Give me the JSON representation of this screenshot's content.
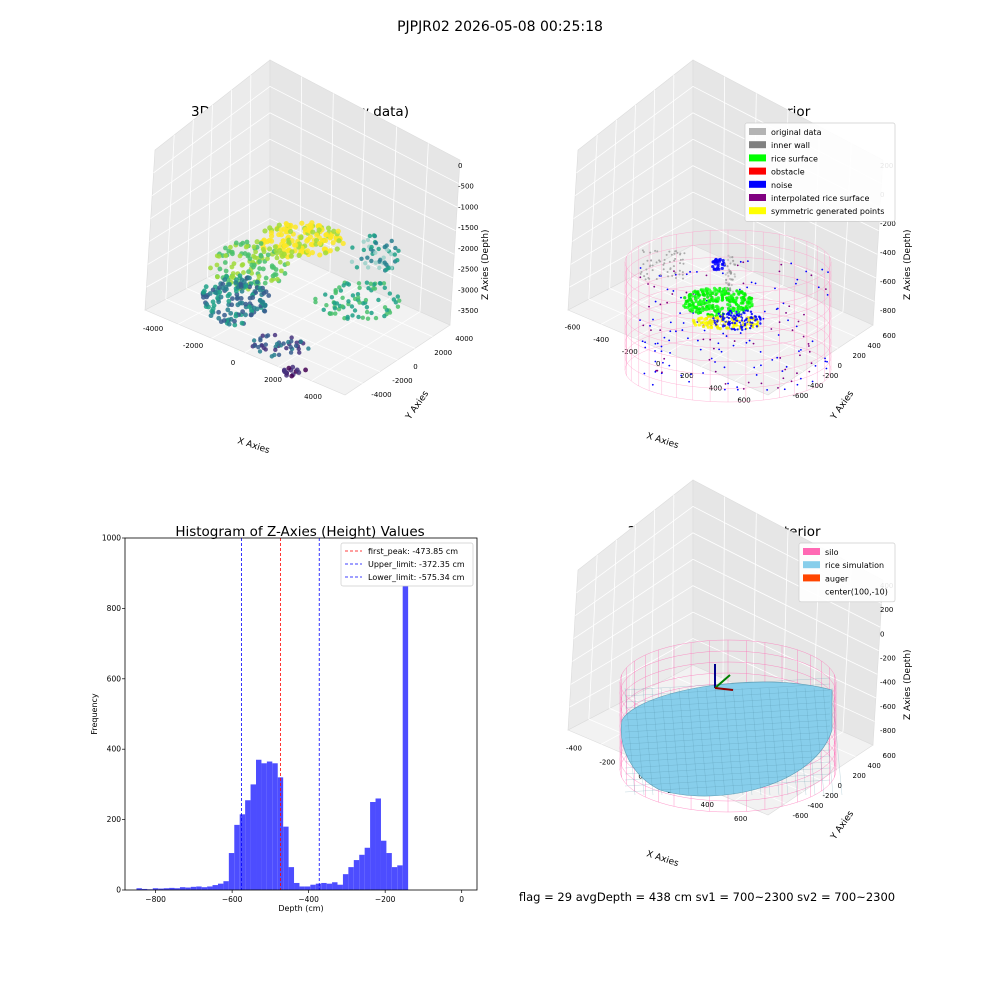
{
  "suptitle": "PJPJR02 2026-05-08 00:25:18",
  "footer": "flag = 29  avgDepth = 438 cm  sv1 = 700~2300  sv2 = 700~2300",
  "chart_data": [
    {
      "type": "scatter",
      "projection": "3d",
      "title": "3D Plot of Silo Interior(row data)",
      "xlabel": "X Axies",
      "ylabel": "Y Axies",
      "zlabel": "Z Axies (Depth)",
      "xticks": [
        "-4000",
        "-2000",
        "0",
        "2000",
        "4000"
      ],
      "yticks": [
        "-4000",
        "-2000",
        "0",
        "2000",
        "4000"
      ],
      "zticks": [
        "0",
        "-500",
        "-1000",
        "-1500",
        "-2000",
        "-2500",
        "-3000",
        "-3500"
      ],
      "colormap": "viridis",
      "grid": true
    },
    {
      "type": "scatter",
      "projection": "3d",
      "title": "3D classify of Silo Interior",
      "xlabel": "X Axies",
      "ylabel": "Y Axies",
      "zlabel": "Z Axies (Depth)",
      "xticks": [
        "-600",
        "-400",
        "-200",
        "0",
        "200",
        "400",
        "600"
      ],
      "yticks": [
        "-600",
        "-400",
        "-200",
        "0",
        "200",
        "400",
        "600"
      ],
      "zticks": [
        "200",
        "0",
        "-200",
        "-400",
        "-600",
        "-800"
      ],
      "legend_position": "top-right",
      "legend": [
        {
          "label": "original data",
          "color": "#b3b3b3"
        },
        {
          "label": "inner wall",
          "color": "#808080"
        },
        {
          "label": "rice surface",
          "color": "#00ff00"
        },
        {
          "label": "obstacle",
          "color": "#ff0000"
        },
        {
          "label": "noise",
          "color": "#0000ff"
        },
        {
          "label": "interpolated rice surface",
          "color": "#800080"
        },
        {
          "label": "symmetric generated points",
          "color": "#ffff00"
        }
      ],
      "grid": true
    },
    {
      "type": "bar",
      "title": "Histogram of Z-Axies (Height) Values",
      "xlabel": "Depth (cm)",
      "ylabel": "Frequency",
      "xlim": [
        -880,
        40
      ],
      "ylim": [
        0,
        1000
      ],
      "xticks": [
        "−800",
        "−600",
        "−400",
        "−200",
        "0"
      ],
      "yticks": [
        "0",
        "200",
        "400",
        "600",
        "800",
        "1000"
      ],
      "bar_color": "#4d4dff",
      "bins": {
        "start": -850,
        "width": 14.2,
        "values": [
          5,
          3,
          2,
          5,
          4,
          5,
          6,
          5,
          8,
          7,
          9,
          10,
          8,
          10,
          14,
          18,
          25,
          105,
          185,
          215,
          255,
          300,
          370,
          360,
          365,
          360,
          320,
          180,
          65,
          20,
          10,
          10,
          15,
          18,
          20,
          18,
          22,
          15,
          45,
          65,
          85,
          100,
          120,
          250,
          260,
          140,
          105,
          65,
          70,
          950
        ]
      },
      "vlines": [
        {
          "label": "first_peak: -473.85 cm",
          "x": -473.85,
          "color": "#ff0000"
        },
        {
          "label": "Upper_limit: -372.35 cm",
          "x": -372.35,
          "color": "#0000ff"
        },
        {
          "label": "Lower_limit: -575.34 cm",
          "x": -575.34,
          "color": "#0000ff"
        }
      ],
      "legend_position": "top-right",
      "grid": false
    },
    {
      "type": "scatter",
      "projection": "3d",
      "title": "3D simulation of Silo Interior",
      "xlabel": "X Axies",
      "ylabel": "Y Axies",
      "zlabel": "Z Axies (Depth)",
      "xticks": [
        "-400",
        "-200",
        "0",
        "200",
        "400",
        "600"
      ],
      "yticks": [
        "-600",
        "-400",
        "-200",
        "0",
        "200",
        "400",
        "600"
      ],
      "zticks": [
        "400",
        "200",
        "0",
        "-200",
        "-400",
        "-600",
        "-800"
      ],
      "legend_position": "top-right",
      "legend": [
        {
          "label": "silo",
          "color": "#ff69b4"
        },
        {
          "label": "rice simulation",
          "color": "#87ceeb"
        },
        {
          "label": "auger",
          "color": "#ff4500"
        },
        {
          "label": "center(100,-10)",
          "color": ""
        }
      ],
      "grid": true
    }
  ]
}
